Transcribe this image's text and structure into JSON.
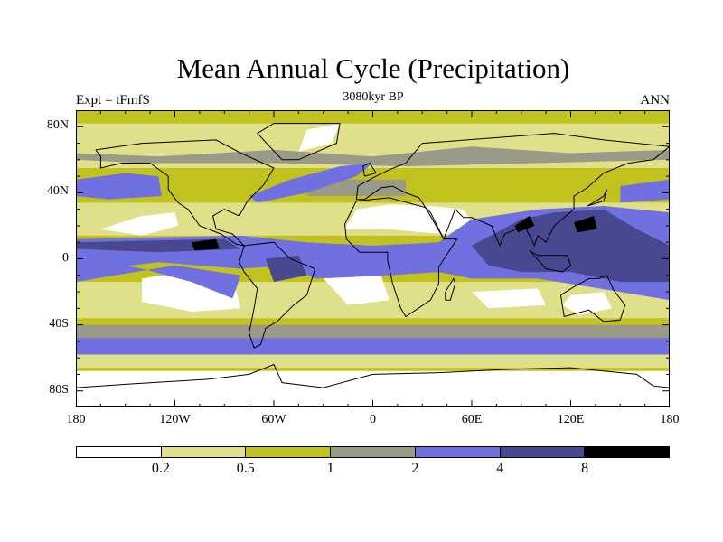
{
  "chart_data": {
    "type": "heatmap",
    "title": "Mean Annual Cycle (Precipitation)",
    "left_string": "Expt = tFmfS",
    "center_string": "3080kyr BP",
    "right_string": "ANN",
    "projection": "cylindrical equidistant",
    "lon_range": [
      -180,
      180
    ],
    "lat_range": [
      -90,
      90
    ],
    "x_ticks": [
      "180",
      "120W",
      "60W",
      "0",
      "60E",
      "120E",
      "180"
    ],
    "x_tick_values": [
      -180,
      -120,
      -60,
      0,
      60,
      120,
      180
    ],
    "y_ticks": [
      "80N",
      "40N",
      "0",
      "40S",
      "80S"
    ],
    "y_tick_values": [
      80,
      40,
      0,
      -40,
      -80
    ],
    "contour_levels": [
      "0.2",
      "0.5",
      "1",
      "2",
      "4",
      "8"
    ],
    "level_colors": [
      "#ffffff",
      "#e0e08a",
      "#c2c21e",
      "#9a9a88",
      "#7070e0",
      "#484890",
      "#000000"
    ]
  }
}
